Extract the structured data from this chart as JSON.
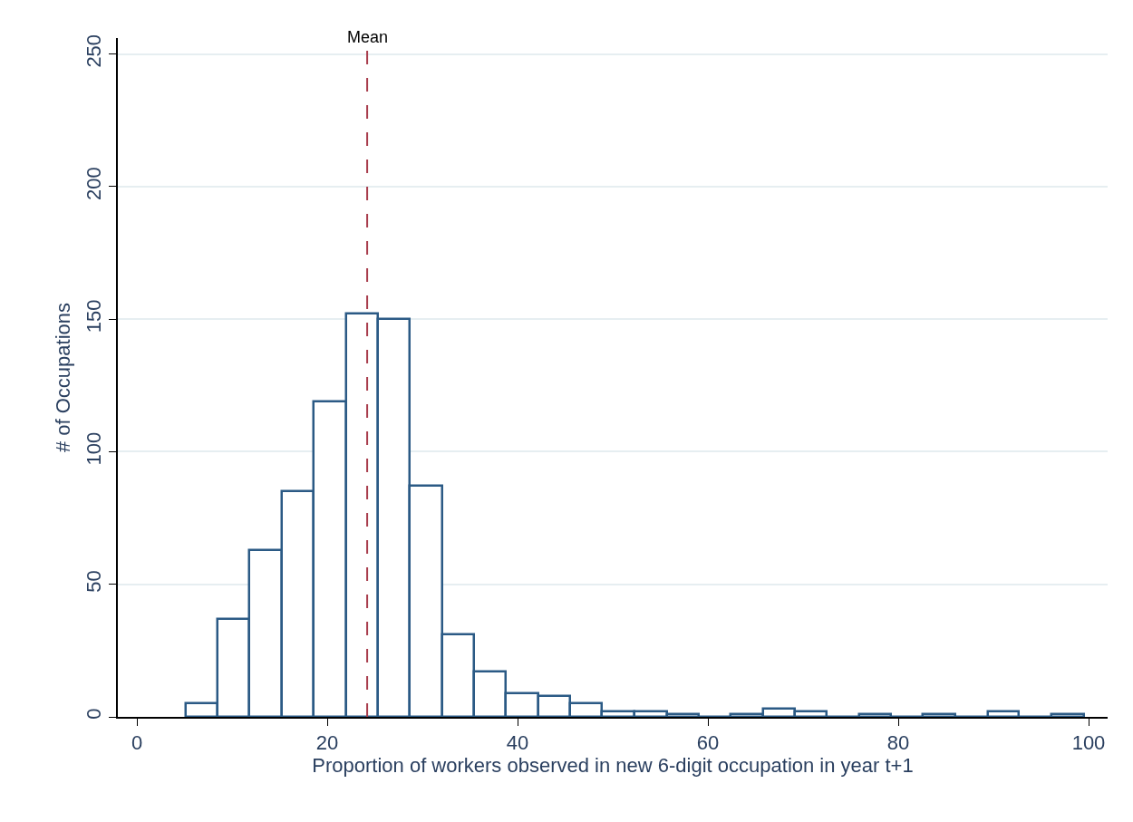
{
  "chart_data": {
    "type": "histogram",
    "xlabel": "Proportion of workers observed in new 6-digit occupation in year t+1",
    "ylabel": "# of Occupations",
    "bins": [
      5.1,
      8.5,
      11.8,
      15.2,
      18.6,
      22.0,
      25.3,
      28.7,
      32.1,
      35.4,
      38.8,
      42.2,
      45.5,
      48.9,
      52.3,
      55.7,
      59.0,
      62.4,
      65.8,
      69.1,
      72.5,
      75.9,
      79.2,
      82.6,
      86.0,
      89.4,
      92.7,
      96.1,
      99.5
    ],
    "values": [
      5,
      37,
      63,
      85,
      119,
      152,
      150,
      87,
      31,
      17,
      9,
      8,
      5,
      2,
      2,
      1,
      0,
      1,
      3,
      2,
      0,
      1,
      0,
      1,
      0,
      2,
      0,
      1
    ],
    "color": "#2b5a85",
    "xlim": [
      -2,
      102
    ],
    "xticks": [
      0,
      20,
      40,
      60,
      80,
      100
    ],
    "ylim": [
      0,
      256
    ],
    "yticks": [
      0,
      50,
      100,
      150,
      200,
      250
    ],
    "grid": "y",
    "ref_lines": [
      {
        "axis": "x",
        "value": 24.2,
        "label": "Mean",
        "color": "#a83c4c",
        "line_style": "dashed"
      }
    ]
  }
}
